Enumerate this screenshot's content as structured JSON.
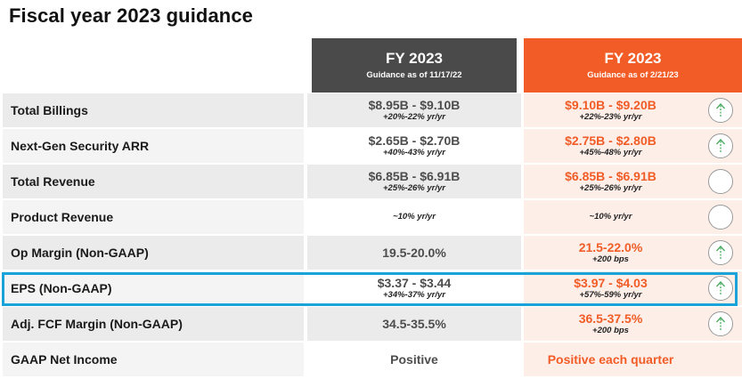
{
  "title": "Fiscal year 2023 guidance",
  "colors": {
    "old_header": "#4a4a4a",
    "new_header": "#f25c26",
    "up_arrow": "#3aa655",
    "highlight": "#1aa3d8"
  },
  "header_old": {
    "title": "FY 2023",
    "subtitle": "Guidance as of 11/17/22"
  },
  "header_new": {
    "title": "FY 2023",
    "subtitle": "Guidance as of 2/21/23"
  },
  "rows": [
    {
      "label": "Total Billings",
      "old_value": "$8.95B - $9.10B",
      "old_sub": "+20%-22% yr/yr",
      "new_value": "$9.10B - $9.20B",
      "new_sub": "+22%-23% yr/yr",
      "icon": "up-arrow-icon"
    },
    {
      "label": "Next-Gen Security ARR",
      "old_value": "$2.65B - $2.70B",
      "old_sub": "+40%-43% yr/yr",
      "new_value": "$2.75B - $2.80B",
      "new_sub": "+45%-48% yr/yr",
      "icon": "up-arrow-icon"
    },
    {
      "label": "Total Revenue",
      "old_value": "$6.85B - $6.91B",
      "old_sub": "+25%-26% yr/yr",
      "new_value": "$6.85B - $6.91B",
      "new_sub": "+25%-26% yr/yr",
      "icon": "unchanged-circle-icon"
    },
    {
      "label": "Product Revenue",
      "old_value": "",
      "old_sub": "~10% yr/yr",
      "new_value": "",
      "new_sub": "~10% yr/yr",
      "icon": "unchanged-circle-icon"
    },
    {
      "label": "Op Margin (Non-GAAP)",
      "old_value": "19.5-20.0%",
      "old_sub": "",
      "new_value": "21.5-22.0%",
      "new_sub": "+200 bps",
      "icon": "up-arrow-icon"
    },
    {
      "label": "EPS (Non-GAAP)",
      "old_value": "$3.37 - $3.44",
      "old_sub": "+34%-37% yr/yr",
      "new_value": "$3.97 - $4.03",
      "new_sub": "+57%-59% yr/yr",
      "icon": "up-arrow-icon"
    },
    {
      "label": "Adj. FCF Margin (Non-GAAP)",
      "old_value": "34.5-35.5%",
      "old_sub": "",
      "new_value": "36.5-37.5%",
      "new_sub": "+200 bps",
      "icon": "up-arrow-icon"
    },
    {
      "label": "GAAP Net Income",
      "old_value": "Positive",
      "old_sub": "",
      "new_value": "Positive each quarter",
      "new_sub": "",
      "icon": ""
    }
  ]
}
